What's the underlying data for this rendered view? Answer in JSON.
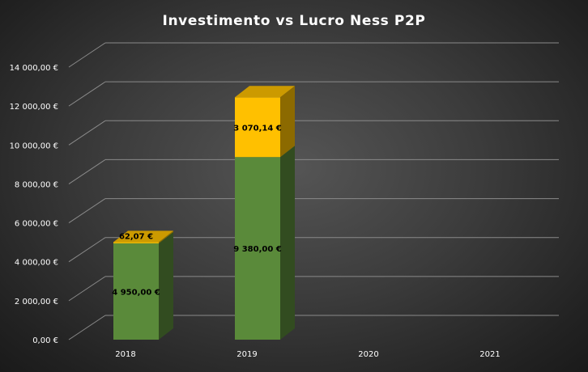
{
  "chart_data": {
    "type": "bar",
    "stacked": true,
    "three_d": true,
    "title": "Investimento  vs Lucro Ness P2P",
    "categories": [
      "2018",
      "2019",
      "2020",
      "2021"
    ],
    "series": [
      {
        "values": [
          4950.0,
          9380.0,
          null,
          null
        ],
        "color": "#5a8a3a",
        "labels": [
          "4 950,00 €",
          "9 380,00 €",
          "",
          ""
        ]
      },
      {
        "values": [
          62.07,
          3070.14,
          null,
          null
        ],
        "color": "#ffc000",
        "labels": [
          "62,07 €",
          "3 070,14 €",
          "",
          ""
        ]
      }
    ],
    "ylim": [
      0,
      14000
    ],
    "y_ticks": [
      0,
      2000,
      4000,
      6000,
      8000,
      10000,
      12000,
      14000
    ],
    "y_tick_labels": [
      "0,00 €",
      "2 000,00 €",
      "4 000,00 €",
      "6 000,00 €",
      "8 000,00 €",
      "10 000,00 €",
      "12 000,00 €",
      "14 000,00 €"
    ],
    "grid": true,
    "legend": "none"
  }
}
